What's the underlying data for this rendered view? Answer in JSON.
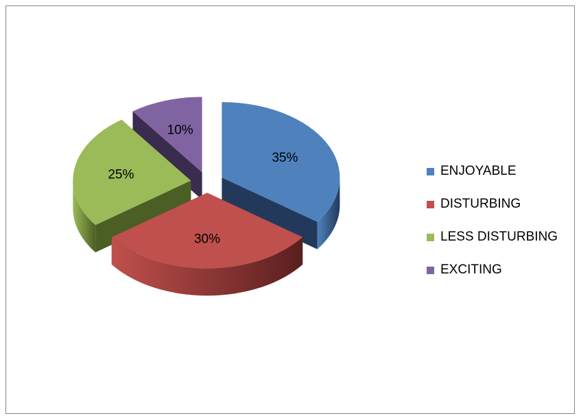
{
  "chart_data": {
    "type": "pie",
    "title": "",
    "categories": [
      "ENJOYABLE",
      "DISTURBING",
      "LESS DISTURBING",
      "EXCITING"
    ],
    "values": [
      35,
      30,
      25,
      10
    ],
    "labels": [
      "35%",
      "30%",
      "25%",
      "10%"
    ],
    "colors": [
      "#4F81BD",
      "#C0504D",
      "#9BBB59",
      "#8064A2"
    ],
    "side_colors": [
      "#23395B",
      "#5A1F1E",
      "#4B5F25",
      "#3A2C4E"
    ],
    "exploded": true,
    "three_d": true,
    "legend_position": "right"
  },
  "legend": {
    "items": [
      {
        "label": "ENJOYABLE",
        "color": "#4F81BD"
      },
      {
        "label": "DISTURBING",
        "color": "#C0504D"
      },
      {
        "label": "LESS DISTURBING",
        "color": "#9BBB59"
      },
      {
        "label": "EXCITING",
        "color": "#8064A2"
      }
    ]
  }
}
